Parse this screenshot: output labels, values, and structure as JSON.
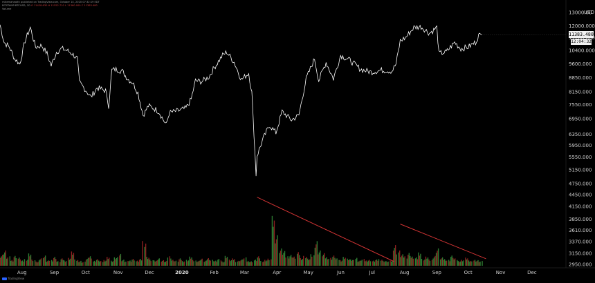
{
  "header": {
    "line1": "mikemahealth published on TradingView.com, October 14, 2020 07:32:19 EDT",
    "line2_symbol": "BITSTAMP:BTCUSD, 1D",
    "line2_values": "11383.480",
    "line2_o": "O 11428.630",
    "line2_h": "H 11552.710",
    "line2_l": "L 11360.000",
    "line2_c": "C 11383.480",
    "line3": "Volume",
    "top_title": "Bitcoin / U.S. Dollar, 1D, BITSTAMP"
  },
  "axis": {
    "currency": "USD",
    "current_price": "11383.480",
    "countdown": "12:04:32"
  },
  "footer": {
    "brand": "TradingView"
  },
  "colors": {
    "price_line": "#ffffff",
    "trendline": "#d23434",
    "volume_up": "#2e7d32",
    "volume_down": "#8e2020",
    "background": "#000000"
  },
  "chart_data": {
    "type": "line",
    "title": "Bitcoin / U.S. Dollar, 1D, BITSTAMP",
    "x_tick_labels": [
      "Aug",
      "Sep",
      "Oct",
      "Nov",
      "Dec",
      "2020",
      "Feb",
      "Mar",
      "Apr",
      "May",
      "Jun",
      "Jul",
      "Aug",
      "Sep",
      "Oct",
      "Nov",
      "Dec"
    ],
    "x_tick_dates": [
      "2019-08-01",
      "2019-09-01",
      "2019-10-01",
      "2019-11-01",
      "2019-12-01",
      "2020-01-01",
      "2020-02-01",
      "2020-03-01",
      "2020-04-01",
      "2020-05-01",
      "2020-06-01",
      "2020-07-01",
      "2020-08-01",
      "2020-09-01",
      "2020-10-01",
      "2020-11-01",
      "2020-12-01"
    ],
    "bold_tick": "2020",
    "y_tick_labels": [
      "13000.00",
      "12000.000",
      "11200.000",
      "10400.000",
      "9600.000",
      "8850.000",
      "8150.000",
      "7550.000",
      "6950.000",
      "6350.000",
      "5950.000",
      "5550.000",
      "5150.000",
      "4750.000",
      "4450.000",
      "4150.000",
      "3850.000",
      "3610.000",
      "3370.000",
      "3150.000",
      "2950.000"
    ],
    "y_tick_values": [
      13000,
      12000,
      11200,
      10400,
      9600,
      8850,
      8150,
      7550,
      6950,
      6350,
      5950,
      5550,
      5150,
      4750,
      4450,
      4150,
      3850,
      3610,
      3370,
      3150,
      2950
    ],
    "y_scale": "log",
    "last_value": 11383.48,
    "series": [
      {
        "label": "price",
        "points": [
          [
            "2019-07-11",
            12100
          ],
          [
            "2019-07-15",
            10900
          ],
          [
            "2019-07-20",
            10600
          ],
          [
            "2019-07-25",
            9900
          ],
          [
            "2019-07-30",
            9600
          ],
          [
            "2019-08-04",
            11000
          ],
          [
            "2019-08-09",
            11900
          ],
          [
            "2019-08-14",
            10600
          ],
          [
            "2019-08-20",
            10700
          ],
          [
            "2019-08-25",
            10200
          ],
          [
            "2019-08-29",
            9500
          ],
          [
            "2019-09-03",
            10300
          ],
          [
            "2019-09-08",
            10500
          ],
          [
            "2019-09-13",
            10400
          ],
          [
            "2019-09-18",
            10200
          ],
          [
            "2019-09-23",
            9900
          ],
          [
            "2019-09-25",
            8600
          ],
          [
            "2019-09-30",
            8300
          ],
          [
            "2019-10-06",
            7900
          ],
          [
            "2019-10-12",
            8350
          ],
          [
            "2019-10-20",
            8200
          ],
          [
            "2019-10-23",
            7500
          ],
          [
            "2019-10-26",
            9250
          ],
          [
            "2019-10-30",
            9300
          ],
          [
            "2019-11-05",
            9200
          ],
          [
            "2019-11-10",
            8800
          ],
          [
            "2019-11-15",
            8600
          ],
          [
            "2019-11-20",
            8100
          ],
          [
            "2019-11-25",
            7100
          ],
          [
            "2019-11-30",
            7500
          ],
          [
            "2019-12-05",
            7400
          ],
          [
            "2019-12-10",
            7250
          ],
          [
            "2019-12-17",
            6700
          ],
          [
            "2019-12-20",
            7200
          ],
          [
            "2019-12-30",
            7300
          ],
          [
            "2020-01-05",
            7400
          ],
          [
            "2020-01-10",
            7800
          ],
          [
            "2020-01-14",
            8700
          ],
          [
            "2020-01-20",
            8650
          ],
          [
            "2020-01-27",
            8900
          ],
          [
            "2020-02-01",
            9400
          ],
          [
            "2020-02-09",
            10100
          ],
          [
            "2020-02-13",
            10300
          ],
          [
            "2020-02-20",
            9700
          ],
          [
            "2020-02-27",
            8750
          ],
          [
            "2020-03-05",
            9100
          ],
          [
            "2020-03-08",
            8100
          ],
          [
            "2020-03-12",
            5000
          ],
          [
            "2020-03-13",
            5600
          ],
          [
            "2020-03-19",
            6200
          ],
          [
            "2020-03-25",
            6700
          ],
          [
            "2020-03-31",
            6400
          ],
          [
            "2020-04-06",
            7250
          ],
          [
            "2020-04-15",
            6900
          ],
          [
            "2020-04-22",
            7100
          ],
          [
            "2020-04-29",
            8800
          ],
          [
            "2020-05-07",
            9900
          ],
          [
            "2020-05-11",
            8700
          ],
          [
            "2020-05-18",
            9700
          ],
          [
            "2020-05-25",
            8800
          ],
          [
            "2020-06-01",
            10100
          ],
          [
            "2020-06-10",
            9800
          ],
          [
            "2020-06-20",
            9300
          ],
          [
            "2020-06-30",
            9150
          ],
          [
            "2020-07-10",
            9250
          ],
          [
            "2020-07-20",
            9200
          ],
          [
            "2020-07-24",
            9600
          ],
          [
            "2020-07-28",
            11000
          ],
          [
            "2020-08-02",
            11200
          ],
          [
            "2020-08-10",
            11900
          ],
          [
            "2020-08-17",
            11950
          ],
          [
            "2020-08-25",
            11500
          ],
          [
            "2020-09-01",
            11900
          ],
          [
            "2020-09-03",
            10200
          ],
          [
            "2020-09-10",
            10300
          ],
          [
            "2020-09-18",
            10900
          ],
          [
            "2020-09-24",
            10500
          ],
          [
            "2020-10-01",
            10600
          ],
          [
            "2020-10-08",
            10900
          ],
          [
            "2020-10-11",
            11350
          ],
          [
            "2020-10-14",
            11383
          ]
        ]
      }
    ],
    "volume": {
      "type": "bar",
      "description_values_relative_of_max": true,
      "start": "2019-07-11",
      "end": "2020-10-14",
      "relative_heights": [
        0.22,
        0.3,
        0.18,
        0.12,
        0.2,
        0.16,
        0.1,
        0.14,
        0.25,
        0.12,
        0.08,
        0.15,
        0.2,
        0.1,
        0.12,
        0.18,
        0.09,
        0.14,
        0.11,
        0.16,
        0.28,
        0.12,
        0.1,
        0.08,
        0.15,
        0.2,
        0.1,
        0.13,
        0.09,
        0.12,
        0.18,
        0.1,
        0.16,
        0.24,
        0.12,
        0.09,
        0.11,
        0.14,
        0.1,
        0.13,
        0.52,
        0.18,
        0.12,
        0.1,
        0.15,
        0.11,
        0.09,
        0.2,
        0.12,
        0.1,
        0.14,
        0.1,
        0.12,
        0.18,
        0.11,
        0.1,
        0.14,
        0.1,
        0.16,
        0.12,
        0.1,
        0.13,
        0.09,
        0.2,
        0.12,
        0.14,
        0.1,
        0.12,
        0.16,
        0.1,
        0.09,
        0.12,
        0.18,
        0.1,
        0.12,
        0.14,
        0.95,
        0.62,
        0.34,
        0.28,
        0.2,
        0.22,
        0.18,
        0.26,
        0.16,
        0.2,
        0.14,
        0.22,
        0.5,
        0.3,
        0.24,
        0.18,
        0.16,
        0.2,
        0.14,
        0.12,
        0.18,
        0.14,
        0.12,
        0.16,
        0.1,
        0.13,
        0.11,
        0.12,
        0.1,
        0.12,
        0.14,
        0.1,
        0.09,
        0.1,
        0.42,
        0.3,
        0.22,
        0.2,
        0.26,
        0.18,
        0.16,
        0.28,
        0.14,
        0.18,
        0.12,
        0.2,
        0.34,
        0.16,
        0.14,
        0.12,
        0.2,
        0.14,
        0.1,
        0.12,
        0.16,
        0.1,
        0.12,
        0.11,
        0.09
      ]
    },
    "trendlines": [
      {
        "from": [
          "2020-03-13",
          4380
        ],
        "to": [
          "2020-07-22",
          3000
        ]
      },
      {
        "from": [
          "2020-07-28",
          3740
        ],
        "to": [
          "2020-10-18",
          3050
        ]
      }
    ]
  }
}
